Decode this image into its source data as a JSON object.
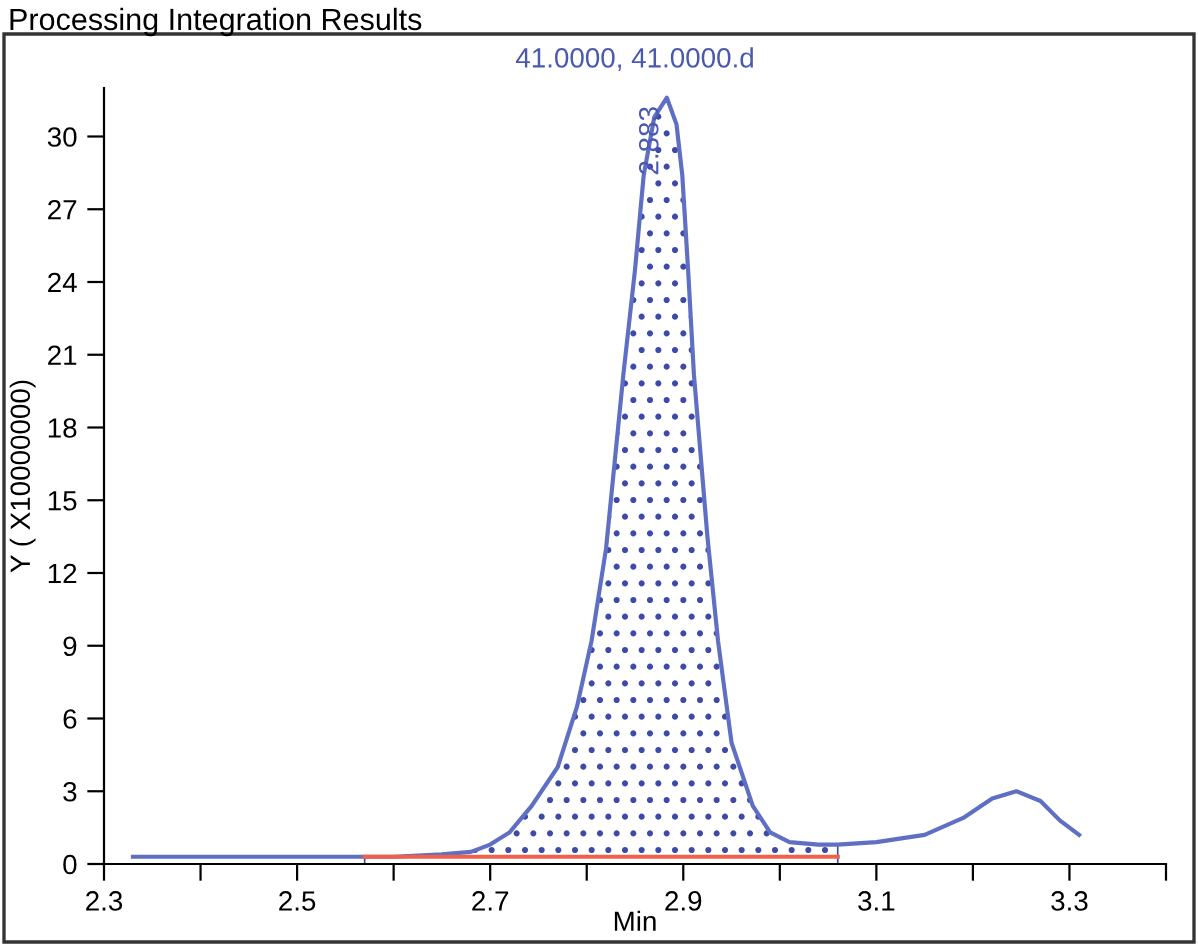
{
  "chart_data": {
    "type": "line",
    "title": "Processing Integration Results",
    "xlabel": "Min",
    "ylabel": "Y ( X10000000)",
    "annotations": [
      "41.0000, 41.0000.d",
      {
        "text": "2.883",
        "x": 2.883,
        "y": 31.6
      }
    ],
    "xlim": [
      2.3,
      3.4
    ],
    "ylim": [
      0,
      32
    ],
    "xticks": [
      2.3,
      {
        "value": 2.4,
        "label": null
      },
      2.5,
      {
        "value": 2.6,
        "label": null
      },
      2.7,
      {
        "value": 2.8,
        "label": null
      },
      2.9,
      {
        "value": 3.0,
        "label": null
      },
      3.1,
      {
        "value": 3.2,
        "label": null
      },
      3.3,
      {
        "value": 3.4,
        "label": null
      }
    ],
    "yticks": [
      0,
      3,
      6,
      9,
      12,
      15,
      18,
      21,
      24,
      27,
      30
    ],
    "grid": false,
    "marker": "none",
    "line_style": "solid",
    "series": [
      {
        "type": "area",
        "color": "#3d4aa8",
        "x": [
          2.57,
          2.6,
          2.65,
          2.68,
          2.7,
          2.72,
          2.743,
          2.77,
          2.79,
          2.805,
          2.82,
          2.838,
          2.85,
          2.859,
          2.87,
          2.883,
          2.893,
          2.899,
          2.905,
          2.911,
          2.925,
          2.936,
          2.95,
          2.972,
          2.99,
          3.01,
          3.04,
          3.06
        ],
        "values": [
          0.3,
          0.3,
          0.4,
          0.5,
          0.8,
          1.3,
          2.4,
          4.0,
          6.5,
          9.2,
          13,
          20.2,
          24.5,
          28.4,
          30.8,
          31.6,
          30.5,
          28.4,
          24.5,
          20.2,
          13.5,
          9.2,
          5.0,
          2.4,
          1.3,
          0.9,
          0.8,
          0.8
        ]
      },
      {
        "color": "#5f6fc4",
        "x": [
          2.33,
          2.5,
          2.6,
          2.65,
          2.68,
          2.7,
          2.72,
          2.743,
          2.77,
          2.79,
          2.805,
          2.82,
          2.838,
          2.85,
          2.859,
          2.87,
          2.883,
          2.893,
          2.899,
          2.905,
          2.911,
          2.925,
          2.936,
          2.95,
          2.972,
          2.99,
          3.01,
          3.04,
          3.06,
          3.1,
          3.15,
          3.19,
          3.22,
          3.245,
          3.27,
          3.29,
          3.31
        ],
        "values": [
          0.3,
          0.3,
          0.3,
          0.4,
          0.5,
          0.8,
          1.3,
          2.4,
          4.0,
          6.5,
          9.2,
          13,
          20.2,
          24.5,
          28.4,
          30.8,
          31.6,
          30.5,
          28.4,
          24.5,
          20.2,
          13.5,
          9.2,
          5.0,
          2.4,
          1.3,
          0.9,
          0.8,
          0.8,
          0.9,
          1.2,
          1.9,
          2.7,
          3.0,
          2.6,
          1.8,
          1.2
        ]
      },
      {
        "color": "#f0604a",
        "x": [
          2.57,
          3.06
        ],
        "values": [
          0.3,
          0.3
        ]
      }
    ]
  }
}
